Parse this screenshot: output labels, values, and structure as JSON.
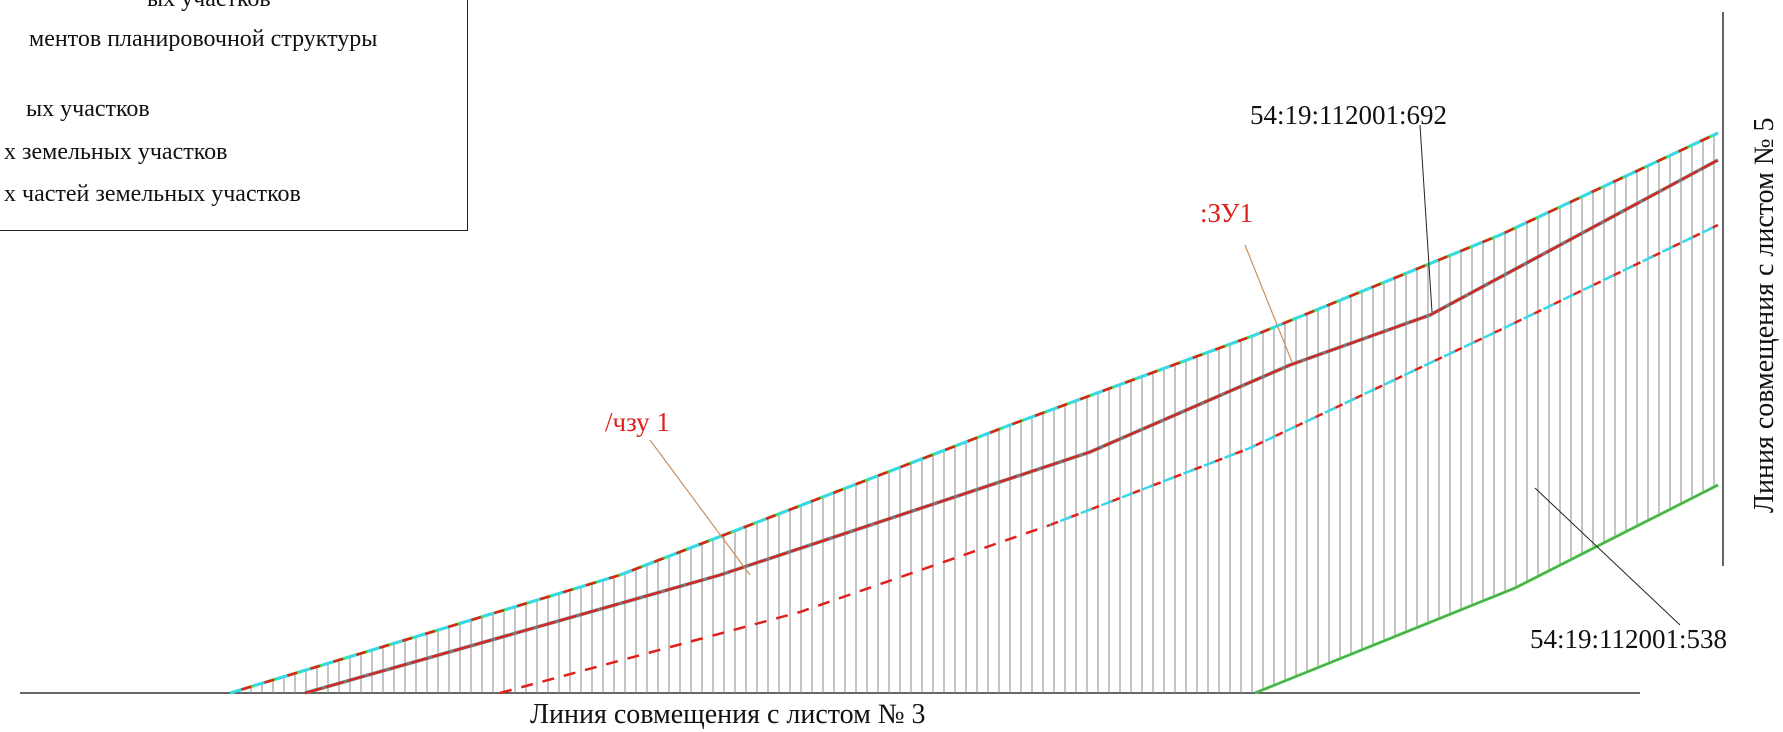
{
  "legend": {
    "line1": "ых участков",
    "line2": "ментов планировочной структуры",
    "line3": "ых участков",
    "line4": "х земельных участков",
    "line5": "х частей земельных участков"
  },
  "labels": {
    "cadastral_692": "54:19:112001:692",
    "zu1": ":ЗУ1",
    "chzu1": "/чзу 1",
    "cadastral_538": "54:19:112001:538",
    "bottom_match_line": "Линия совмещения с листом № 3",
    "right_match_line": "Линия совмещения с листом № 5"
  },
  "colors": {
    "red_label": "#e0201c",
    "red_boundary": "#e0201c",
    "green_boundary": "#38e038",
    "cyan_boundary": "#38d8e8",
    "hatch": "#8a8a8a",
    "leader": "#c89060",
    "black_leader": "#222222"
  }
}
